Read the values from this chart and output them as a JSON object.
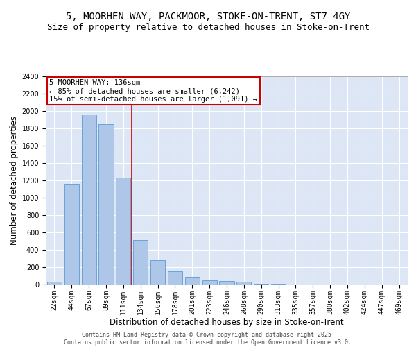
{
  "title_line1": "5, MOORHEN WAY, PACKMOOR, STOKE-ON-TRENT, ST7 4GY",
  "title_line2": "Size of property relative to detached houses in Stoke-on-Trent",
  "xlabel": "Distribution of detached houses by size in Stoke-on-Trent",
  "ylabel": "Number of detached properties",
  "categories": [
    "22sqm",
    "44sqm",
    "67sqm",
    "89sqm",
    "111sqm",
    "134sqm",
    "156sqm",
    "178sqm",
    "201sqm",
    "223sqm",
    "246sqm",
    "268sqm",
    "290sqm",
    "313sqm",
    "335sqm",
    "357sqm",
    "380sqm",
    "402sqm",
    "424sqm",
    "447sqm",
    "469sqm"
  ],
  "values": [
    30,
    1160,
    1960,
    1850,
    1230,
    510,
    280,
    155,
    90,
    50,
    40,
    30,
    10,
    5,
    3,
    2,
    1,
    1,
    1,
    1,
    1
  ],
  "bar_color": "#aec6e8",
  "bar_edge_color": "#5b9bd5",
  "vline_color": "#cc0000",
  "annotation_text": "5 MOORHEN WAY: 136sqm\n← 85% of detached houses are smaller (6,242)\n15% of semi-detached houses are larger (1,091) →",
  "annotation_box_color": "#cc0000",
  "ylim": [
    0,
    2400
  ],
  "yticks": [
    0,
    200,
    400,
    600,
    800,
    1000,
    1200,
    1400,
    1600,
    1800,
    2000,
    2200,
    2400
  ],
  "background_color": "#dce6f5",
  "footer_text": "Contains HM Land Registry data © Crown copyright and database right 2025.\nContains public sector information licensed under the Open Government Licence v3.0.",
  "title_fontsize": 10,
  "subtitle_fontsize": 9,
  "axis_label_fontsize": 8.5,
  "tick_fontsize": 7,
  "annotation_fontsize": 7.5,
  "footer_fontsize": 6,
  "vline_x_index": 4.5
}
